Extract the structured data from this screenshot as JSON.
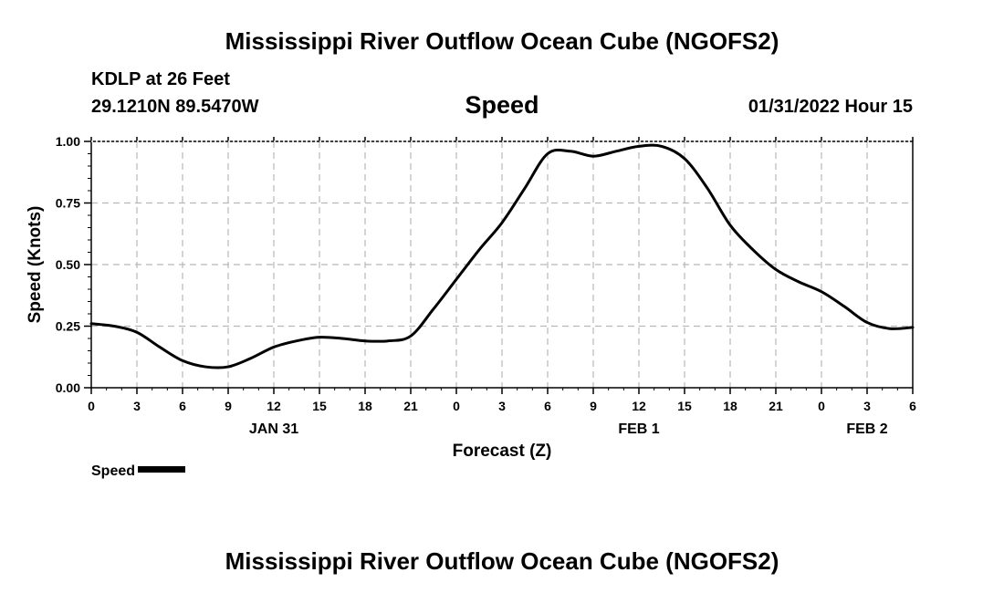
{
  "header": {
    "title": "Mississippi River Outflow Ocean Cube (NGOFS2)",
    "station": "KDLP at 26 Feet",
    "coordinates": "29.1210N  89.5470W",
    "variable": "Speed",
    "datetime": "01/31/2022 Hour 15"
  },
  "footer": {
    "title": "Mississippi River Outflow Ocean Cube (NGOFS2)"
  },
  "legend": {
    "label": "Speed"
  },
  "chart_data": {
    "type": "line",
    "title": "Speed",
    "xlabel": "Forecast (Z)",
    "ylabel": "Speed (Knots)",
    "x_unit": "hours from 01/31/2022 00Z",
    "xlim": [
      0,
      54
    ],
    "ylim": [
      0,
      1.0
    ],
    "yticks": [
      0.0,
      0.25,
      0.5,
      0.75,
      1.0
    ],
    "ytick_labels": [
      "0.00",
      "0.25",
      "0.50",
      "0.75",
      "1.00"
    ],
    "xticks": [
      0,
      3,
      6,
      9,
      12,
      15,
      18,
      21,
      24,
      27,
      30,
      33,
      36,
      39,
      42,
      45,
      48,
      51,
      54
    ],
    "xtick_labels": [
      "0",
      "3",
      "6",
      "9",
      "12",
      "15",
      "18",
      "21",
      "0",
      "3",
      "6",
      "9",
      "12",
      "15",
      "18",
      "21",
      "0",
      "3",
      "6"
    ],
    "date_labels": [
      {
        "label": "JAN 31",
        "x": 12
      },
      {
        "label": "FEB 1",
        "x": 36
      },
      {
        "label": "FEB 2",
        "x": 51
      }
    ],
    "grid": true,
    "series": [
      {
        "name": "Speed",
        "color": "#000000",
        "x": [
          0,
          1.5,
          3,
          4.5,
          6,
          7.5,
          9,
          10.5,
          12,
          13.5,
          15,
          16.5,
          18,
          19.5,
          21,
          22.5,
          24,
          25.5,
          27,
          28.5,
          30,
          31.5,
          33,
          34.5,
          36,
          37.5,
          39,
          40.5,
          42,
          43.5,
          45,
          46.5,
          48,
          49.5,
          51,
          52.5,
          54
        ],
        "values": [
          0.26,
          0.25,
          0.225,
          0.165,
          0.11,
          0.085,
          0.085,
          0.12,
          0.165,
          0.19,
          0.205,
          0.2,
          0.19,
          0.19,
          0.21,
          0.32,
          0.44,
          0.56,
          0.67,
          0.81,
          0.95,
          0.96,
          0.94,
          0.96,
          0.98,
          0.98,
          0.93,
          0.81,
          0.66,
          0.56,
          0.48,
          0.43,
          0.39,
          0.33,
          0.265,
          0.24,
          0.245
        ]
      }
    ]
  }
}
